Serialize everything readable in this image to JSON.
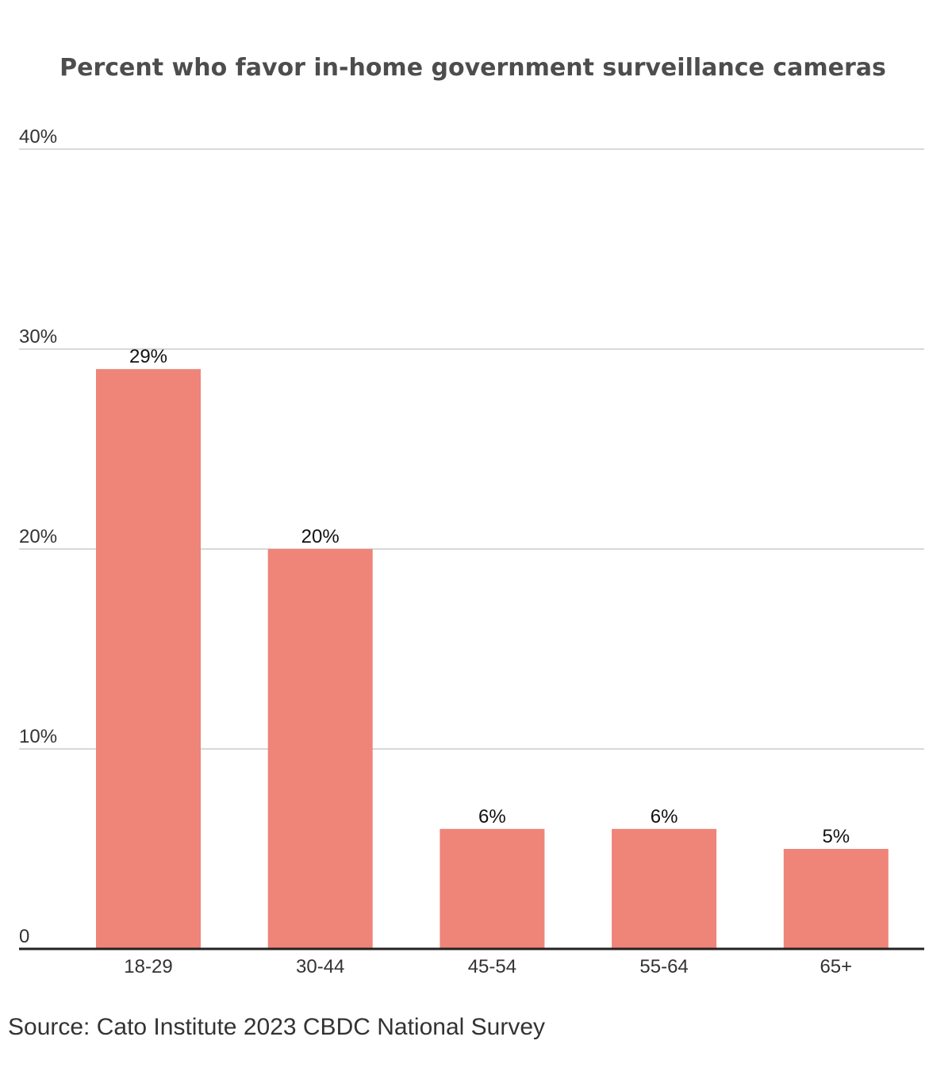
{
  "chart_data": {
    "type": "bar",
    "title": "Percent who favor in-home government surveillance cameras",
    "categories": [
      "18-29",
      "30-44",
      "45-54",
      "55-64",
      "65+"
    ],
    "values": [
      29,
      20,
      6,
      6,
      5
    ],
    "value_labels": [
      "29%",
      "20%",
      "6%",
      "6%",
      "5%"
    ],
    "ylim": [
      0,
      40
    ],
    "yticks": [
      0,
      10,
      20,
      30,
      40
    ],
    "ytick_labels": [
      "0",
      "10%",
      "20%",
      "30%",
      "40%"
    ],
    "xlabel": "",
    "ylabel": "",
    "grid": true,
    "legend": "none",
    "colors": {
      "bar": "#ef8478",
      "grid": "#d9d9d9",
      "axis": "#222222",
      "title": "#4d4d4d"
    }
  },
  "source": "Source: Cato Institute 2023 CBDC National Survey"
}
